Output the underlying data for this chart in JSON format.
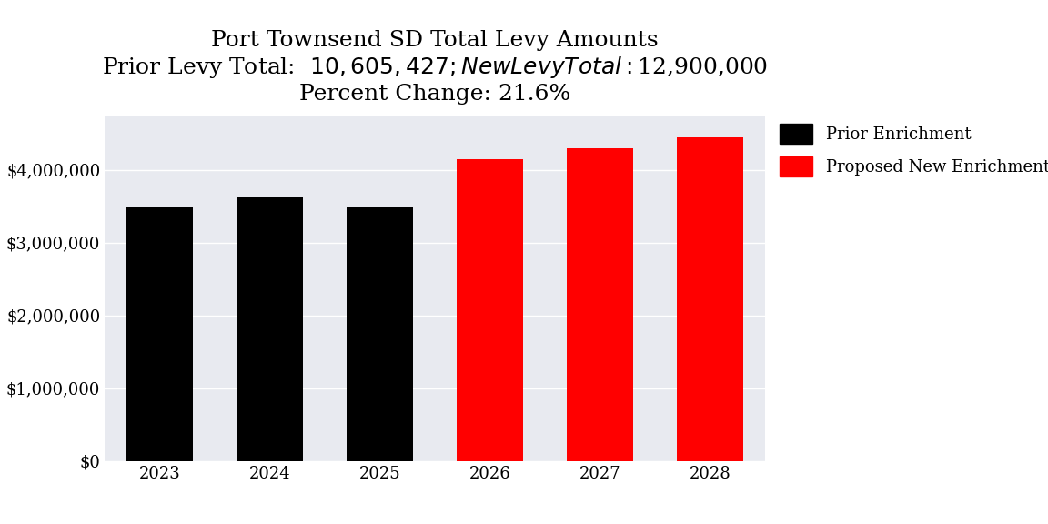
{
  "title_line1": "Port Townsend SD Total Levy Amounts",
  "title_line2": "Prior Levy Total:  $10,605,427; New Levy Total: $12,900,000",
  "title_line3": "Percent Change: 21.6%",
  "years": [
    2023,
    2024,
    2025,
    2026,
    2027,
    2028
  ],
  "values": [
    3480000,
    3625427,
    3500000,
    4150000,
    4300000,
    4450000
  ],
  "colors": [
    "#000000",
    "#000000",
    "#000000",
    "#ff0000",
    "#ff0000",
    "#ff0000"
  ],
  "legend_labels": [
    "Prior Enrichment",
    "Proposed New Enrichment"
  ],
  "legend_colors": [
    "#000000",
    "#ff0000"
  ],
  "ylim": [
    0,
    4750000
  ],
  "ytick_values": [
    0,
    1000000,
    2000000,
    3000000,
    4000000
  ],
  "background_color": "#e8eaf0",
  "figure_background": "#ffffff",
  "title_fontsize": 18,
  "tick_fontsize": 13,
  "legend_fontsize": 13,
  "bar_width": 0.6
}
